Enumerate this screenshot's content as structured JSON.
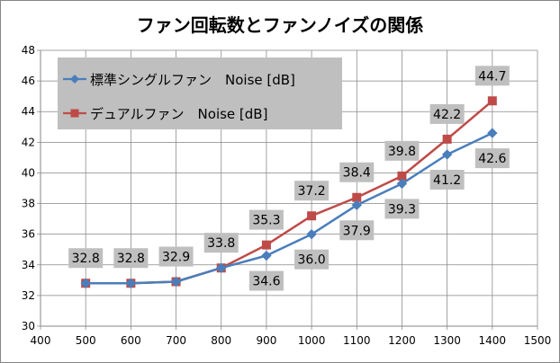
{
  "chart_data": {
    "type": "line",
    "title": "ファン回転数とファンノイズの関係",
    "xlabel": "",
    "ylabel": "",
    "x": [
      500,
      600,
      700,
      800,
      900,
      1000,
      1100,
      1200,
      1300,
      1400
    ],
    "xlim": [
      400,
      1500
    ],
    "xticks": [
      400,
      500,
      600,
      700,
      800,
      900,
      1000,
      1100,
      1200,
      1300,
      1400,
      1500
    ],
    "ylim": [
      30,
      48
    ],
    "yticks": [
      30,
      32,
      34,
      36,
      38,
      40,
      42,
      44,
      46,
      48
    ],
    "grid": true,
    "legend_position": "top-left",
    "series": [
      {
        "name": "標準シングルファン　Noise [dB]",
        "color": "#4a7ebb",
        "marker": "diamond",
        "values": [
          32.8,
          32.8,
          32.9,
          33.8,
          34.6,
          36.0,
          37.9,
          39.3,
          41.2,
          42.6
        ],
        "labels": [
          "32.8",
          "32.8",
          "32.9",
          "33.8",
          "34.6",
          "36.0",
          "37.9",
          "39.3",
          "41.2",
          "42.6"
        ]
      },
      {
        "name": "デュアルファン　Noise [dB]",
        "color": "#be4b48",
        "marker": "square",
        "values": [
          32.8,
          32.8,
          32.9,
          33.8,
          35.3,
          37.2,
          38.4,
          39.8,
          42.2,
          44.7
        ],
        "labels": [
          "",
          "",
          "",
          "",
          "35.3",
          "37.2",
          "38.4",
          "39.8",
          "42.2",
          "44.7"
        ]
      }
    ]
  }
}
